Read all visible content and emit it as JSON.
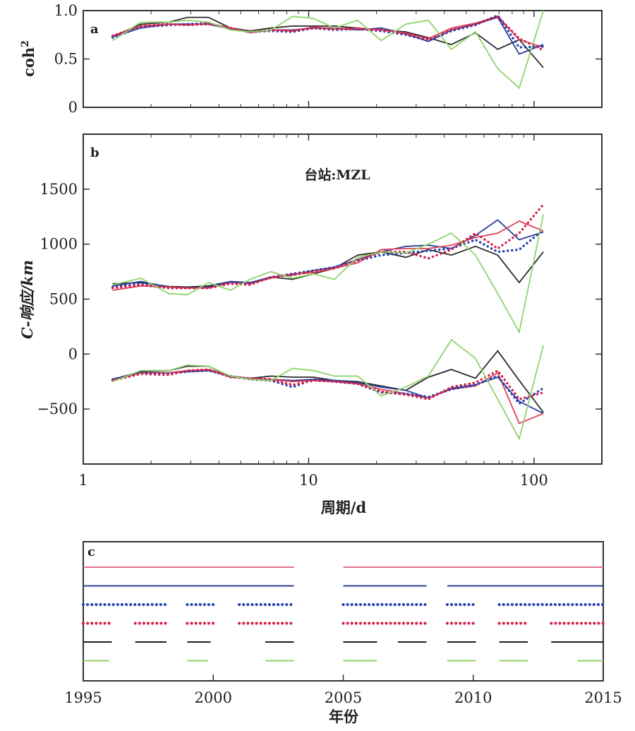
{
  "chart_data": [
    {
      "panel": "a",
      "type": "line",
      "xscale": "log",
      "xlim": [
        1,
        200
      ],
      "ylim": [
        0,
        1
      ],
      "ylabel_base": "coh",
      "ylabel_sup": "2",
      "yticks": [
        0,
        0.5,
        1
      ],
      "ytick_labels": [
        "0",
        "0.5",
        "1.0"
      ],
      "x": [
        1.35,
        1.8,
        2.4,
        2.9,
        3.6,
        4.5,
        5.5,
        6.8,
        8.5,
        10.5,
        13,
        16.5,
        21,
        27,
        34,
        43,
        55,
        69,
        86,
        110
      ],
      "series": [
        {
          "color": "#2b2b2b",
          "dash": "solid",
          "values": [
            0.73,
            0.86,
            0.88,
            0.93,
            0.93,
            0.82,
            0.79,
            0.82,
            0.84,
            0.84,
            0.84,
            0.82,
            0.8,
            0.78,
            0.72,
            0.65,
            0.77,
            0.6,
            0.7,
            0.41
          ]
        },
        {
          "color": "#2a3d9a",
          "dash": "solid",
          "values": [
            0.73,
            0.82,
            0.86,
            0.86,
            0.86,
            0.81,
            0.78,
            0.8,
            0.8,
            0.82,
            0.82,
            0.8,
            0.82,
            0.76,
            0.68,
            0.8,
            0.86,
            0.93,
            0.55,
            0.65
          ]
        },
        {
          "color": "#e0405a",
          "dash": "solid",
          "values": [
            0.74,
            0.84,
            0.86,
            0.85,
            0.87,
            0.82,
            0.77,
            0.8,
            0.79,
            0.83,
            0.81,
            0.82,
            0.8,
            0.77,
            0.71,
            0.82,
            0.87,
            0.94,
            0.7,
            0.62
          ]
        },
        {
          "color": "#2440b0",
          "dash": "dot",
          "values": [
            0.72,
            0.83,
            0.85,
            0.86,
            0.87,
            0.81,
            0.78,
            0.79,
            0.78,
            0.82,
            0.8,
            0.81,
            0.79,
            0.75,
            0.69,
            0.79,
            0.85,
            0.95,
            0.62,
            0.63
          ]
        },
        {
          "color": "#d42048",
          "dash": "dot",
          "values": [
            0.74,
            0.84,
            0.86,
            0.85,
            0.86,
            0.82,
            0.78,
            0.8,
            0.79,
            0.82,
            0.81,
            0.81,
            0.8,
            0.76,
            0.7,
            0.8,
            0.86,
            0.94,
            0.71,
            0.59
          ]
        },
        {
          "color": "#8fd46a",
          "dash": "solid",
          "values": [
            0.69,
            0.88,
            0.88,
            0.9,
            0.88,
            0.8,
            0.78,
            0.8,
            0.94,
            0.92,
            0.82,
            0.9,
            0.69,
            0.86,
            0.9,
            0.6,
            0.78,
            0.4,
            0.2,
            1.0
          ]
        }
      ]
    },
    {
      "panel": "b",
      "type": "line",
      "xscale": "log",
      "xlim": [
        1,
        200
      ],
      "ylim": [
        -1000,
        2000
      ],
      "ylabel_main": "C-响应/km",
      "xlabel": "周期/d",
      "annotation": "台站:MZL",
      "yticks": [
        -500,
        0,
        500,
        1000,
        1500
      ],
      "ytick_labels": [
        "-500",
        "0",
        "500",
        "1000",
        "1500"
      ],
      "xticks": [
        1,
        10,
        100
      ],
      "xtick_labels": [
        "1",
        "10",
        "100"
      ],
      "x": [
        1.35,
        1.8,
        2.4,
        2.9,
        3.6,
        4.5,
        5.5,
        6.8,
        8.5,
        10.5,
        13,
        16.5,
        21,
        27,
        34,
        43,
        55,
        69,
        86,
        110
      ],
      "series": [
        {
          "group": "real",
          "color": "#2b2b2b",
          "dash": "solid",
          "values": [
            640,
            650,
            615,
            610,
            620,
            660,
            650,
            700,
            680,
            730,
            780,
            900,
            930,
            880,
            950,
            900,
            980,
            900,
            650,
            930
          ]
        },
        {
          "group": "real",
          "color": "#2a3d9a",
          "dash": "solid",
          "values": [
            620,
            660,
            610,
            600,
            610,
            660,
            650,
            700,
            720,
            760,
            790,
            860,
            930,
            980,
            990,
            960,
            1080,
            1220,
            1040,
            1110
          ]
        },
        {
          "group": "real",
          "color": "#e0405a",
          "dash": "solid",
          "values": [
            580,
            620,
            610,
            600,
            600,
            650,
            640,
            690,
            730,
            740,
            780,
            830,
            950,
            960,
            960,
            990,
            1060,
            1100,
            1210,
            1120
          ]
        },
        {
          "group": "real",
          "color": "#2440b0",
          "dash": "dot",
          "values": [
            610,
            640,
            600,
            600,
            610,
            650,
            640,
            700,
            730,
            760,
            790,
            850,
            900,
            920,
            940,
            960,
            1040,
            930,
            950,
            1130
          ]
        },
        {
          "group": "real",
          "color": "#d42048",
          "dash": "dot",
          "values": [
            600,
            630,
            600,
            600,
            600,
            640,
            630,
            700,
            720,
            750,
            780,
            850,
            930,
            930,
            870,
            950,
            1100,
            960,
            1100,
            1360
          ]
        },
        {
          "group": "real",
          "color": "#8fd46a",
          "dash": "solid",
          "values": [
            630,
            690,
            550,
            540,
            650,
            580,
            680,
            750,
            690,
            730,
            680,
            880,
            930,
            920,
            1000,
            1100,
            900,
            550,
            200,
            1270
          ]
        },
        {
          "group": "imag",
          "color": "#2b2b2b",
          "dash": "solid",
          "values": [
            -230,
            -160,
            -150,
            -110,
            -110,
            -210,
            -220,
            -200,
            -210,
            -210,
            -240,
            -250,
            -290,
            -330,
            -210,
            -140,
            -220,
            30,
            -240,
            -530
          ]
        },
        {
          "group": "imag",
          "color": "#2a3d9a",
          "dash": "solid",
          "values": [
            -230,
            -170,
            -170,
            -160,
            -150,
            -200,
            -220,
            -230,
            -240,
            -230,
            -240,
            -260,
            -300,
            -330,
            -400,
            -310,
            -280,
            -210,
            -430,
            -540
          ]
        },
        {
          "group": "imag",
          "color": "#e0405a",
          "dash": "solid",
          "values": [
            -240,
            -170,
            -170,
            -150,
            -140,
            -200,
            -220,
            -230,
            -250,
            -240,
            -250,
            -270,
            -320,
            -360,
            -400,
            -320,
            -290,
            -170,
            -630,
            -540
          ]
        },
        {
          "group": "imag",
          "color": "#2440b0",
          "dash": "dot",
          "values": [
            -230,
            -170,
            -180,
            -160,
            -150,
            -200,
            -230,
            -240,
            -300,
            -230,
            -250,
            -270,
            -350,
            -360,
            -390,
            -320,
            -280,
            -200,
            -450,
            -310
          ]
        },
        {
          "group": "imag",
          "color": "#d42048",
          "dash": "dot",
          "values": [
            -240,
            -180,
            -190,
            -150,
            -140,
            -210,
            -220,
            -230,
            -280,
            -240,
            -250,
            -270,
            -340,
            -370,
            -410,
            -300,
            -260,
            -150,
            -410,
            -350
          ]
        },
        {
          "group": "imag",
          "color": "#8fd46a",
          "dash": "solid",
          "values": [
            -250,
            -150,
            -150,
            -100,
            -110,
            -200,
            -230,
            -240,
            -130,
            -150,
            -200,
            -200,
            -380,
            -300,
            -200,
            130,
            -40,
            -410,
            -770,
            80
          ]
        }
      ]
    },
    {
      "panel": "c",
      "type": "timeline",
      "xlim": [
        1995,
        2015
      ],
      "xlabel": "年份",
      "xticks": [
        1995,
        2000,
        2005,
        2010,
        2015
      ],
      "xtick_labels": [
        "1995",
        "2000",
        "2005",
        "2010",
        "2015"
      ],
      "rows": [
        {
          "color": "#e07088",
          "dash": "solid",
          "segments": [
            [
              1995,
              2003.1
            ],
            [
              2005,
              2015
            ]
          ]
        },
        {
          "color": "#2a3d9a",
          "dash": "solid",
          "segments": [
            [
              1995,
              2003.1
            ],
            [
              2005,
              2008.2
            ],
            [
              2009,
              2015
            ]
          ]
        },
        {
          "color": "#2440b0",
          "dash": "dot",
          "segments": [
            [
              1995,
              1998.2
            ],
            [
              1999,
              2000.1
            ],
            [
              2001,
              2003.1
            ],
            [
              2005,
              2008.2
            ],
            [
              2009,
              2010.1
            ],
            [
              2011,
              2015
            ]
          ]
        },
        {
          "color": "#d42048",
          "dash": "dot",
          "segments": [
            [
              1995,
              1996.1
            ],
            [
              1997,
              1998.2
            ],
            [
              1999,
              2000.1
            ],
            [
              2001,
              2003.1
            ],
            [
              2005,
              2008.2
            ],
            [
              2009,
              2010.1
            ],
            [
              2011,
              2012.1
            ],
            [
              2013,
              2015
            ]
          ]
        },
        {
          "color": "#1f1f1f",
          "dash": "solid",
          "segments": [
            [
              1995,
              1996.1
            ],
            [
              1997,
              1998.2
            ],
            [
              1999,
              1999.9
            ],
            [
              2002,
              2003.1
            ],
            [
              2005,
              2006.3
            ],
            [
              2007.1,
              2008.2
            ],
            [
              2009,
              2010.1
            ],
            [
              2011,
              2012.1
            ],
            [
              2013,
              2015
            ]
          ]
        },
        {
          "color": "#8fd46a",
          "dash": "solid",
          "segments": [
            [
              1995,
              1996
            ],
            [
              1999,
              1999.8
            ],
            [
              2002,
              2003.1
            ],
            [
              2005,
              2006.3
            ],
            [
              2009,
              2010.1
            ],
            [
              2011,
              2012.1
            ],
            [
              2014,
              2015
            ]
          ]
        }
      ]
    }
  ]
}
